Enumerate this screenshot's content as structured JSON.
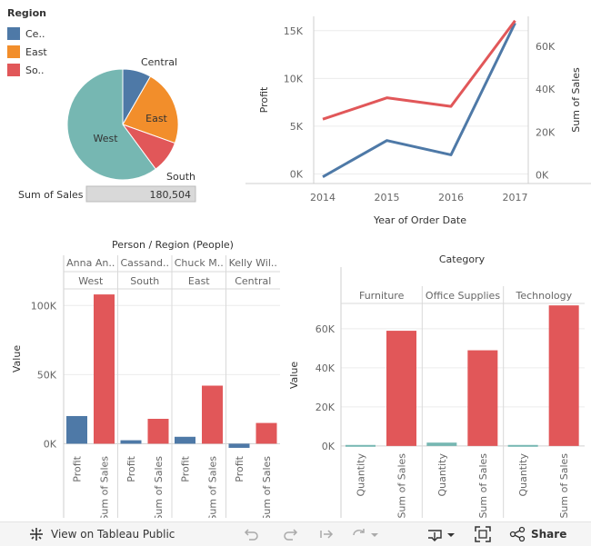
{
  "colors": {
    "central": "#4e79a7",
    "east": "#f28e2b",
    "south": "#e15759",
    "west": "#76b7b2",
    "profit": "#4e79a7",
    "sales": "#e15759",
    "quantity": "#76b7b2"
  },
  "legend": {
    "title": "Region",
    "items": [
      {
        "label": "Ce..",
        "color": "#4e79a7"
      },
      {
        "label": "East",
        "color": "#f28e2b"
      },
      {
        "label": "So..",
        "color": "#e15759"
      }
    ]
  },
  "sales_summary": {
    "label": "Sum of Sales",
    "value": "180,504"
  },
  "toolbar": {
    "view_label": "View on Tableau Public",
    "share_label": "Share"
  },
  "chart_data": [
    {
      "type": "pie",
      "title": "Region",
      "measure": "Sum of Sales",
      "slices": [
        {
          "label": "Central",
          "value": 15000,
          "color": "#4e79a7"
        },
        {
          "label": "East",
          "value": 40000,
          "color": "#f28e2b"
        },
        {
          "label": "South",
          "value": 17000,
          "color": "#e15759"
        },
        {
          "label": "West",
          "value": 108504,
          "color": "#76b7b2"
        }
      ]
    },
    {
      "type": "line",
      "x": [
        "2014",
        "2015",
        "2016",
        "2017"
      ],
      "xlabel": "Year of Order Date",
      "series": [
        {
          "name": "Profit",
          "axis": "left",
          "color": "#4e79a7",
          "values": [
            -300,
            3500,
            2000,
            15800
          ]
        },
        {
          "name": "Sum of Sales",
          "axis": "right",
          "color": "#e15759",
          "values": [
            26000,
            36000,
            32000,
            72000
          ]
        }
      ],
      "y_left": {
        "label": "Profit",
        "ylim": [
          -1000,
          16500
        ],
        "ticks": [
          0,
          5000,
          10000,
          15000
        ],
        "tick_labels": [
          "0K",
          "5K",
          "10K",
          "15K"
        ]
      },
      "y_right": {
        "label": "Sum of Sales",
        "ylim": [
          -4000,
          74000
        ],
        "ticks": [
          0,
          20000,
          40000,
          60000
        ],
        "tick_labels": [
          "0K",
          "20K",
          "40K",
          "60K"
        ]
      }
    },
    {
      "type": "bar",
      "title": "Person / Region (People)",
      "ylabel": "Value",
      "ylim": [
        -5000,
        112000
      ],
      "ticks": [
        0,
        50000,
        100000
      ],
      "tick_labels": [
        "0K",
        "50K",
        "100K"
      ],
      "groups": [
        {
          "person": "Anna An..",
          "region": "West",
          "bars": [
            {
              "measure": "Profit",
              "value": 20000
            },
            {
              "measure": "Sum of Sales",
              "value": 108000
            }
          ]
        },
        {
          "person": "Cassand..",
          "region": "South",
          "bars": [
            {
              "measure": "Profit",
              "value": 2500
            },
            {
              "measure": "Sum of Sales",
              "value": 18000
            }
          ]
        },
        {
          "person": "Chuck M..",
          "region": "East",
          "bars": [
            {
              "measure": "Profit",
              "value": 5000
            },
            {
              "measure": "Sum of Sales",
              "value": 42000
            }
          ]
        },
        {
          "person": "Kelly Wil..",
          "region": "Central",
          "bars": [
            {
              "measure": "Profit",
              "value": -3000
            },
            {
              "measure": "Sum of Sales",
              "value": 15000
            }
          ]
        }
      ]
    },
    {
      "type": "bar",
      "title": "Category",
      "ylabel": "Value",
      "ylim": [
        -1000,
        73000
      ],
      "ticks": [
        0,
        20000,
        40000,
        60000
      ],
      "tick_labels": [
        "0K",
        "20K",
        "40K",
        "60K"
      ],
      "groups": [
        {
          "category": "Furniture",
          "bars": [
            {
              "measure": "Quantity",
              "value": 500
            },
            {
              "measure": "Sum of Sales",
              "value": 59000
            }
          ]
        },
        {
          "category": "Office Supplies",
          "bars": [
            {
              "measure": "Quantity",
              "value": 1700
            },
            {
              "measure": "Sum of Sales",
              "value": 49000
            }
          ]
        },
        {
          "category": "Technology",
          "bars": [
            {
              "measure": "Quantity",
              "value": 500
            },
            {
              "measure": "Sum of Sales",
              "value": 72000
            }
          ]
        }
      ]
    }
  ]
}
